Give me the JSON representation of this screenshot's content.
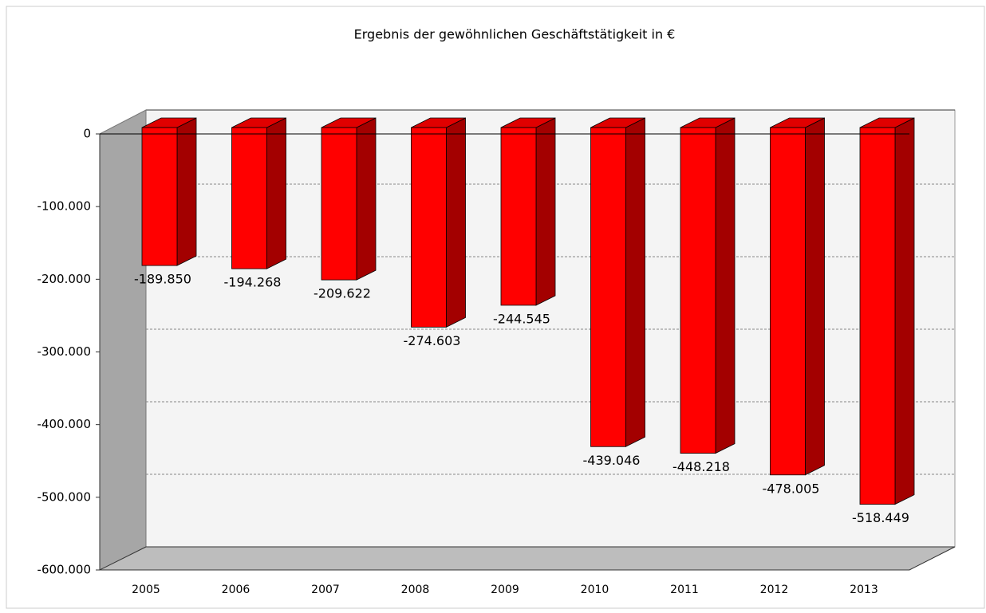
{
  "chart_data": {
    "type": "bar",
    "title": "Ergebnis der gewöhnlichen Geschäftstätigkeit in €",
    "categories": [
      "2005",
      "2006",
      "2007",
      "2008",
      "2009",
      "2010",
      "2011",
      "2012",
      "2013"
    ],
    "values": [
      -189850,
      -194268,
      -209622,
      -274603,
      -244545,
      -439046,
      -448218,
      -478005,
      -518449
    ],
    "value_labels": [
      "-189.850",
      "-194.268",
      "-209.622",
      "-274.603",
      "-244.545",
      "-439.046",
      "-448.218",
      "-478.005",
      "-518.449"
    ],
    "color": "#ff0000",
    "ylim": [
      -600000,
      0
    ],
    "yticks": [
      0,
      {
        "value": -100000,
        "label": "-100.000"
      },
      {
        "value": -200000,
        "label": "-200.000"
      },
      {
        "value": -300000,
        "label": "-300.000"
      },
      {
        "value": -400000,
        "label": "-400.000"
      },
      {
        "value": -500000,
        "label": "-500.000"
      },
      {
        "value": -600000,
        "label": "-600.000"
      }
    ],
    "grid": true
  }
}
